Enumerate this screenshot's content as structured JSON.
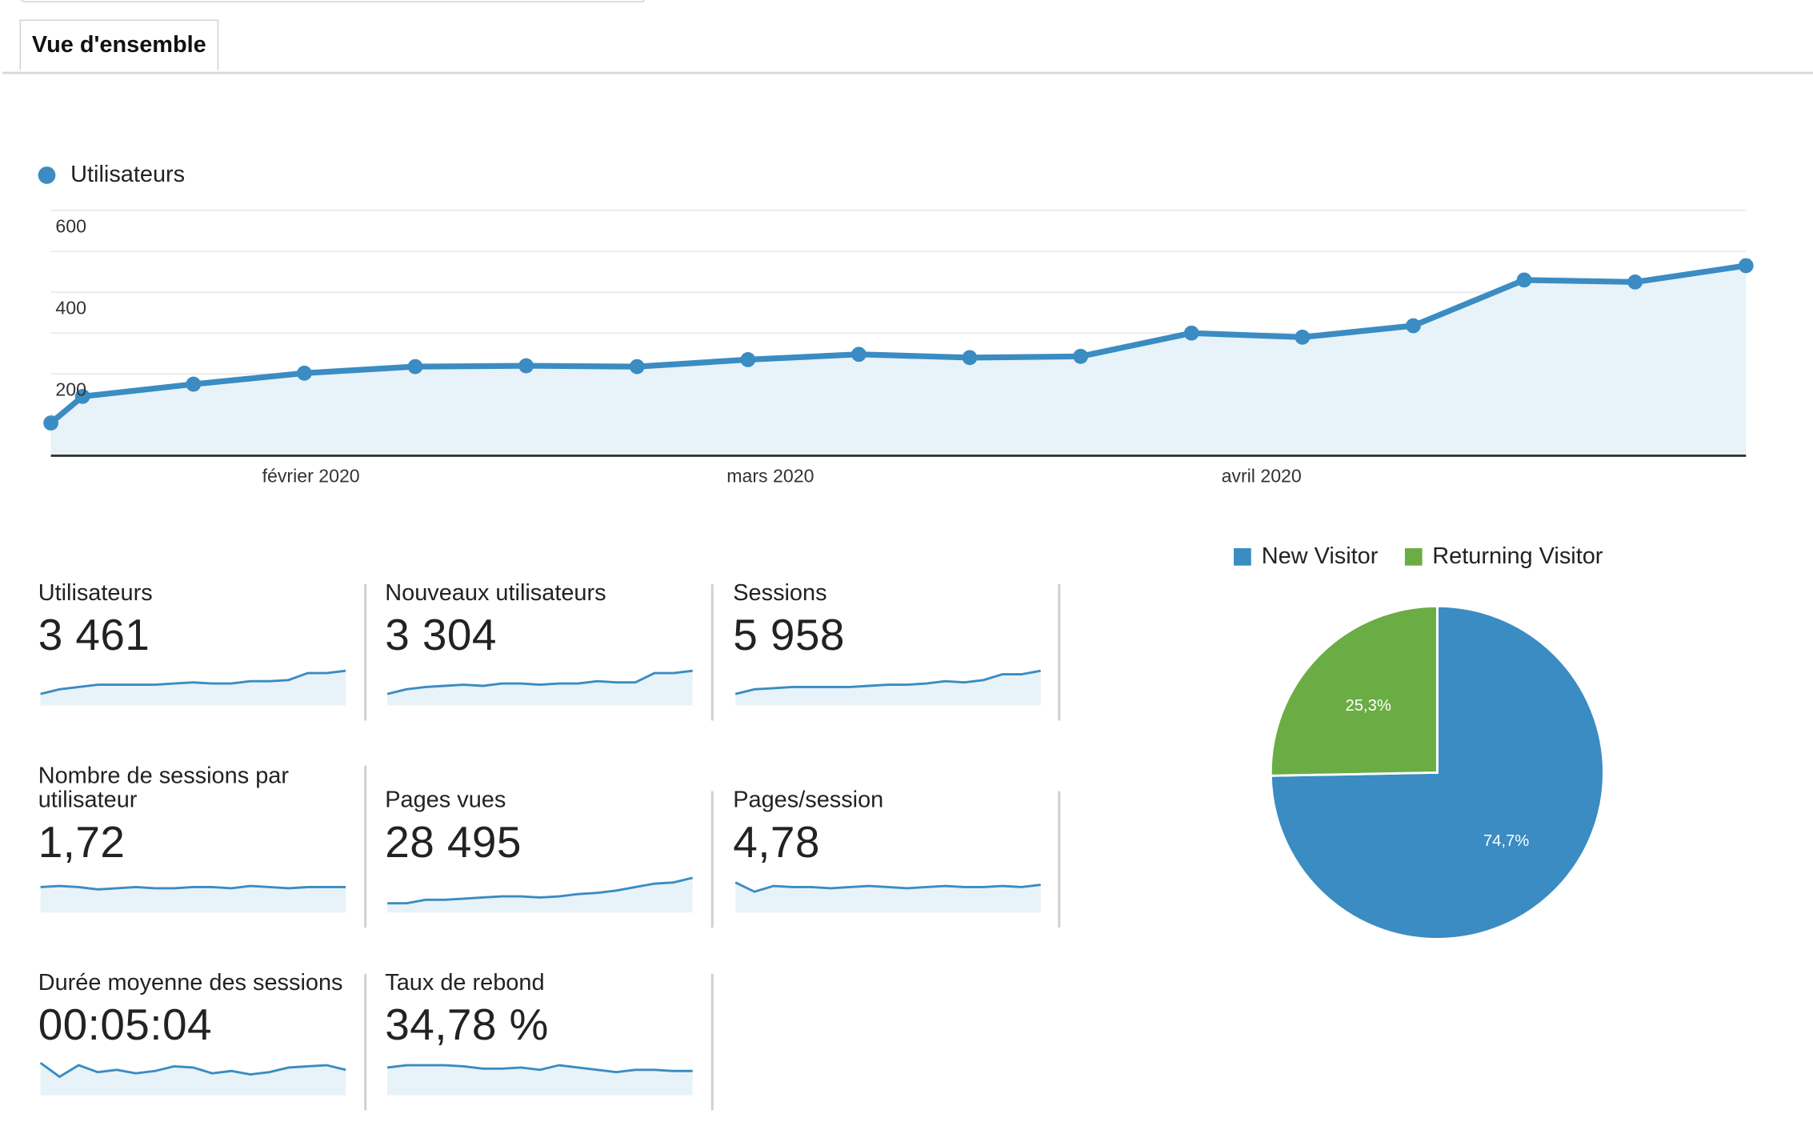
{
  "tabs": [
    {
      "label": "Vue d'ensemble"
    }
  ],
  "colors": {
    "primary": "#3a8cc2",
    "fill": "#e8f2f9",
    "returning": "#6aad45"
  },
  "chart_data": [
    {
      "type": "line",
      "series": [
        {
          "name": "Utilisateurs",
          "values": [
            80,
            145,
            175,
            202,
            218,
            220,
            218,
            235,
            248,
            240,
            243,
            300,
            290,
            318,
            430,
            425,
            465
          ]
        }
      ],
      "x": [
        "2020-01-15",
        "2020-01-17",
        "2020-01-24",
        "2020-01-31",
        "2020-02-07",
        "2020-02-14",
        "2020-02-21",
        "2020-02-28",
        "2020-03-06",
        "2020-03-13",
        "2020-03-20",
        "2020-03-27",
        "2020-04-03",
        "2020-04-10",
        "2020-04-17",
        "2020-04-24",
        "2020-05-01"
      ],
      "xtick_labels": [
        "février 2020",
        "mars 2020",
        "avril 2020"
      ],
      "ytick_labels": [
        "600",
        "400",
        "200"
      ],
      "ylim": [
        0,
        600
      ],
      "grid": true,
      "legend": "top-left"
    },
    {
      "type": "pie",
      "series": [
        {
          "name": "New Visitor",
          "values": [
            74.7
          ],
          "label": "74,7%"
        },
        {
          "name": "Returning Visitor",
          "values": [
            25.3
          ],
          "label": "25,3%"
        }
      ],
      "legend": "top"
    }
  ],
  "metrics": [
    {
      "label": "Utilisateurs",
      "value": "3 461",
      "spark": [
        10,
        14,
        16,
        18,
        18,
        18,
        18,
        19,
        20,
        19,
        19,
        21,
        21,
        22,
        28,
        28,
        30
      ]
    },
    {
      "label": "Nouveaux utilisateurs",
      "value": "3 304",
      "spark": [
        10,
        14,
        16,
        17,
        18,
        17,
        19,
        19,
        18,
        19,
        19,
        21,
        20,
        20,
        28,
        28,
        30
      ]
    },
    {
      "label": "Sessions",
      "value": "5 958",
      "spark": [
        10,
        14,
        15,
        16,
        16,
        16,
        16,
        17,
        18,
        18,
        19,
        21,
        20,
        22,
        27,
        27,
        30
      ]
    },
    {
      "label": "Nombre de sessions par utilisateur",
      "value": "1,72",
      "spark": [
        22,
        23,
        22,
        20,
        21,
        22,
        21,
        21,
        22,
        22,
        21,
        23,
        22,
        21,
        22,
        22,
        22
      ]
    },
    {
      "label": "Pages vues",
      "value": "28 495",
      "spark": [
        8,
        8,
        11,
        11,
        12,
        13,
        14,
        14,
        13,
        14,
        16,
        17,
        19,
        22,
        25,
        26,
        30
      ]
    },
    {
      "label": "Pages/session",
      "value": "4,78",
      "spark": [
        26,
        18,
        23,
        22,
        22,
        21,
        22,
        23,
        22,
        21,
        22,
        23,
        22,
        22,
        23,
        22,
        24
      ]
    },
    {
      "label": "Durée moyenne des sessions",
      "value": "00:05:04",
      "spark": [
        28,
        16,
        26,
        20,
        22,
        19,
        21,
        25,
        24,
        19,
        21,
        18,
        20,
        24,
        25,
        26,
        22
      ]
    },
    {
      "label": "Taux de rebond",
      "value": "34,78 %",
      "spark": [
        24,
        26,
        26,
        26,
        25,
        23,
        23,
        24,
        22,
        26,
        24,
        22,
        20,
        22,
        22,
        21,
        21
      ]
    }
  ]
}
